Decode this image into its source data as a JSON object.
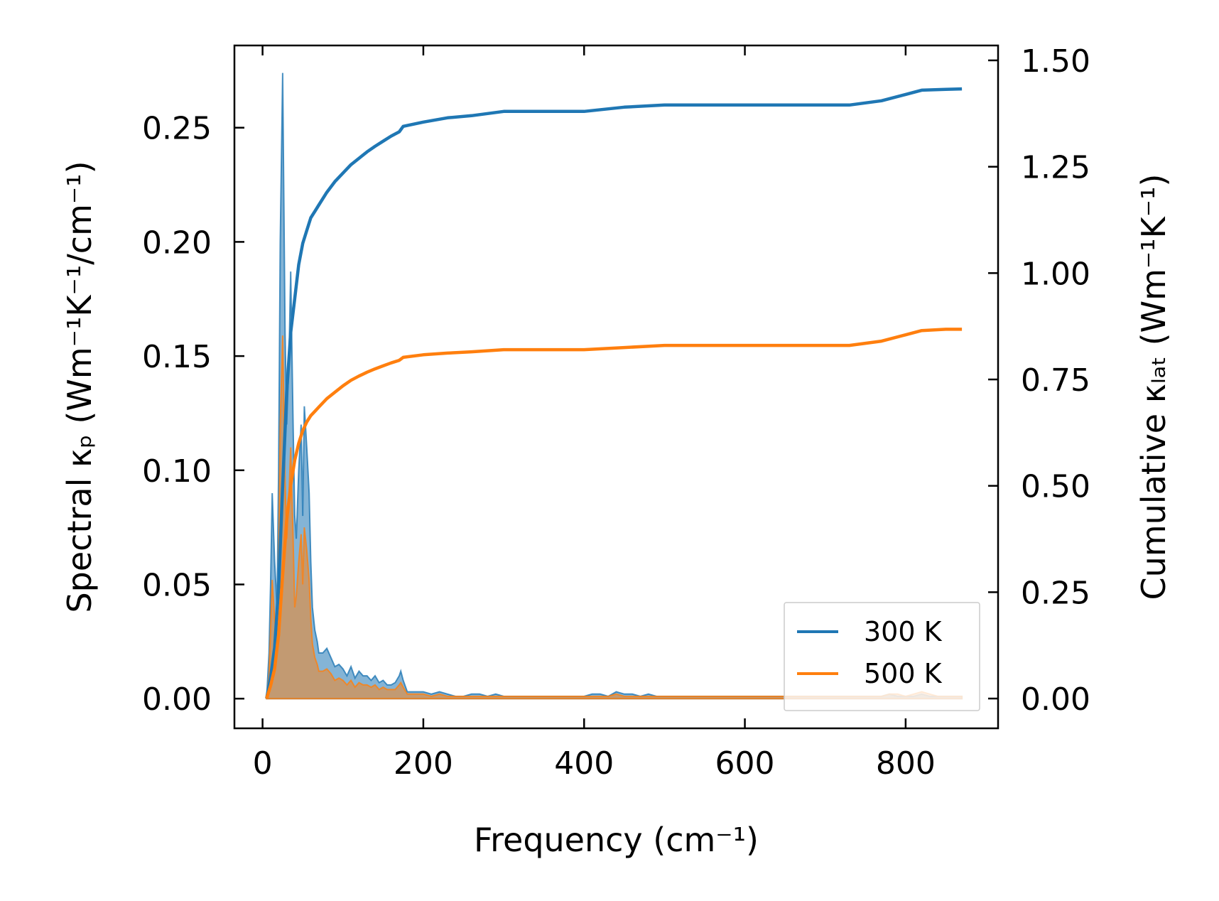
{
  "chart_data": {
    "type": "line",
    "xlabel": "Frequency (cm⁻¹)",
    "ylabel_left": "Spectral κₚ (Wm⁻¹K⁻¹/cm⁻¹)",
    "ylabel_right": "Cumulative κₗₐₜ (Wm⁻¹K⁻¹)",
    "xlim": [
      -35,
      915
    ],
    "ylim_left": [
      -0.013,
      0.286
    ],
    "ylim_right": [
      -0.07,
      1.535
    ],
    "xticks": [
      0,
      200,
      400,
      600,
      800
    ],
    "yticks_left": [
      0.0,
      0.05,
      0.1,
      0.15,
      0.2,
      0.25
    ],
    "yticks_right": [
      0.0,
      0.25,
      0.5,
      0.75,
      1.0,
      1.25,
      1.5
    ],
    "xtick_labels": [
      "0",
      "200",
      "400",
      "600",
      "800"
    ],
    "ytick_labels_left": [
      "0.00",
      "0.05",
      "0.10",
      "0.15",
      "0.20",
      "0.25"
    ],
    "ytick_labels_right": [
      "0.00",
      "0.25",
      "0.50",
      "0.75",
      "1.00",
      "1.25",
      "1.50"
    ],
    "legend_placement": "lower-right",
    "grid": false,
    "series": [
      {
        "name": "300 K",
        "color": "#1f77b4",
        "spectral": {
          "x": [
            5,
            8,
            10,
            12,
            15,
            18,
            20,
            22,
            25,
            28,
            30,
            33,
            35,
            38,
            40,
            42,
            45,
            48,
            50,
            52,
            55,
            58,
            60,
            62,
            65,
            68,
            70,
            75,
            80,
            85,
            90,
            95,
            100,
            105,
            110,
            115,
            120,
            125,
            130,
            135,
            140,
            145,
            150,
            155,
            160,
            165,
            170,
            172,
            175,
            180,
            190,
            200,
            210,
            220,
            230,
            240,
            250,
            260,
            270,
            280,
            290,
            300,
            320,
            340,
            360,
            380,
            400,
            410,
            420,
            430,
            440,
            450,
            460,
            470,
            480,
            490,
            500,
            550,
            600,
            650,
            700,
            720,
            740,
            760,
            770,
            780,
            790,
            800,
            810,
            820,
            830,
            840,
            850,
            860,
            870
          ],
          "y": [
            0.0,
            0.02,
            0.05,
            0.09,
            0.06,
            0.04,
            0.1,
            0.2,
            0.274,
            0.16,
            0.12,
            0.15,
            0.187,
            0.12,
            0.08,
            0.07,
            0.1,
            0.12,
            0.08,
            0.128,
            0.11,
            0.09,
            0.06,
            0.04,
            0.03,
            0.025,
            0.02,
            0.02,
            0.022,
            0.018,
            0.014,
            0.015,
            0.013,
            0.01,
            0.014,
            0.009,
            0.012,
            0.01,
            0.01,
            0.008,
            0.01,
            0.007,
            0.008,
            0.006,
            0.006,
            0.007,
            0.01,
            0.012,
            0.008,
            0.003,
            0.003,
            0.003,
            0.002,
            0.003,
            0.002,
            0.001,
            0.001,
            0.002,
            0.002,
            0.001,
            0.002,
            0.001,
            0.001,
            0.001,
            0.001,
            0.001,
            0.001,
            0.002,
            0.002,
            0.001,
            0.003,
            0.002,
            0.002,
            0.001,
            0.002,
            0.001,
            0.001,
            0.001,
            0.001,
            0.001,
            0.001,
            0.001,
            0.001,
            0.001,
            0.001,
            0.002,
            0.001,
            0.001,
            0.001,
            0.002,
            0.001,
            0.001,
            0.001,
            0.001,
            0.001
          ]
        },
        "cumulative": {
          "x": [
            5,
            10,
            15,
            20,
            25,
            30,
            35,
            40,
            45,
            50,
            55,
            60,
            65,
            70,
            80,
            90,
            100,
            110,
            120,
            130,
            140,
            150,
            160,
            170,
            175,
            200,
            230,
            260,
            300,
            350,
            400,
            450,
            500,
            550,
            600,
            650,
            700,
            730,
            750,
            770,
            800,
            820,
            850,
            870
          ],
          "y": [
            0.0,
            0.05,
            0.12,
            0.26,
            0.5,
            0.72,
            0.86,
            0.94,
            1.02,
            1.07,
            1.1,
            1.13,
            1.145,
            1.16,
            1.19,
            1.215,
            1.235,
            1.255,
            1.27,
            1.285,
            1.298,
            1.31,
            1.322,
            1.332,
            1.345,
            1.355,
            1.365,
            1.37,
            1.38,
            1.38,
            1.38,
            1.39,
            1.395,
            1.395,
            1.395,
            1.395,
            1.395,
            1.395,
            1.4,
            1.405,
            1.42,
            1.43,
            1.432,
            1.433
          ]
        }
      },
      {
        "name": "500 K",
        "color": "#ff7f0e",
        "spectral": {
          "x": [
            5,
            8,
            10,
            12,
            15,
            18,
            20,
            22,
            25,
            28,
            30,
            33,
            35,
            38,
            40,
            42,
            45,
            48,
            50,
            52,
            55,
            58,
            60,
            62,
            65,
            68,
            70,
            75,
            80,
            85,
            90,
            95,
            100,
            105,
            110,
            115,
            120,
            125,
            130,
            135,
            140,
            145,
            150,
            155,
            160,
            165,
            170,
            172,
            175,
            180,
            190,
            200,
            210,
            220,
            230,
            240,
            250,
            260,
            270,
            280,
            290,
            300,
            320,
            340,
            360,
            380,
            400,
            410,
            420,
            430,
            440,
            450,
            460,
            470,
            480,
            490,
            500,
            550,
            600,
            650,
            700,
            720,
            740,
            760,
            770,
            780,
            790,
            800,
            810,
            820,
            830,
            840,
            850,
            860,
            870
          ],
          "y": [
            0.0,
            0.01,
            0.03,
            0.052,
            0.035,
            0.025,
            0.06,
            0.12,
            0.159,
            0.095,
            0.07,
            0.09,
            0.11,
            0.07,
            0.04,
            0.045,
            0.06,
            0.072,
            0.05,
            0.075,
            0.065,
            0.052,
            0.035,
            0.024,
            0.018,
            0.015,
            0.012,
            0.012,
            0.013,
            0.011,
            0.008,
            0.009,
            0.008,
            0.006,
            0.008,
            0.005,
            0.007,
            0.006,
            0.006,
            0.005,
            0.006,
            0.004,
            0.005,
            0.004,
            0.004,
            0.004,
            0.006,
            0.007,
            0.005,
            0.002,
            0.002,
            0.002,
            0.001,
            0.002,
            0.001,
            0.001,
            0.001,
            0.001,
            0.001,
            0.001,
            0.001,
            0.001,
            0.001,
            0.001,
            0.001,
            0.001,
            0.001,
            0.001,
            0.001,
            0.001,
            0.002,
            0.001,
            0.001,
            0.001,
            0.001,
            0.001,
            0.001,
            0.001,
            0.001,
            0.001,
            0.001,
            0.001,
            0.001,
            0.001,
            0.001,
            0.002,
            0.002,
            0.001,
            0.002,
            0.003,
            0.002,
            0.001,
            0.001,
            0.001,
            0.001
          ]
        },
        "cumulative": {
          "x": [
            5,
            10,
            15,
            20,
            25,
            30,
            35,
            40,
            45,
            50,
            55,
            60,
            65,
            70,
            80,
            90,
            100,
            110,
            120,
            130,
            140,
            150,
            160,
            170,
            175,
            200,
            230,
            260,
            300,
            350,
            400,
            450,
            500,
            550,
            600,
            650,
            700,
            730,
            750,
            770,
            800,
            820,
            850,
            870
          ],
          "y": [
            0.0,
            0.03,
            0.07,
            0.15,
            0.29,
            0.42,
            0.5,
            0.56,
            0.6,
            0.63,
            0.65,
            0.665,
            0.675,
            0.685,
            0.705,
            0.72,
            0.735,
            0.748,
            0.758,
            0.767,
            0.775,
            0.782,
            0.789,
            0.795,
            0.802,
            0.808,
            0.812,
            0.815,
            0.82,
            0.82,
            0.82,
            0.825,
            0.83,
            0.83,
            0.83,
            0.83,
            0.83,
            0.83,
            0.835,
            0.84,
            0.855,
            0.865,
            0.868,
            0.868
          ]
        }
      }
    ]
  }
}
